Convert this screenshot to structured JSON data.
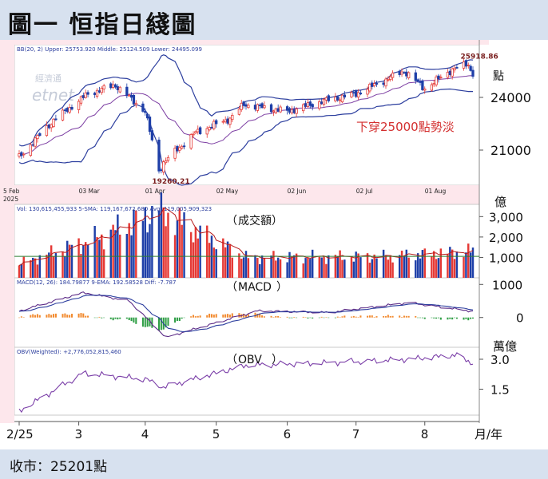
{
  "header": {
    "title": "圖一 恒指日綫圖"
  },
  "footer": {
    "close_label": "收市：25201點"
  },
  "watermark": {
    "line1": "經濟通",
    "line2": "etnet"
  },
  "colors": {
    "up": "#e53935",
    "down": "#1e3fa8",
    "bands": "#2c3e9e",
    "middle": "#7d3fa3",
    "annotation": "#d32f2f",
    "pink_panel": "#fde7ec",
    "macd_pos": "#f28a2e",
    "macd_neg": "#2e9e44",
    "vol_avg": "#2e7d32"
  },
  "chart_data": [
    {
      "type": "candlestick",
      "legend": "BB(20, 2)  Upper: 25753.920  Middle: 25124.509  Lower: 24495.099",
      "ylim": [
        19000,
        27000
      ],
      "y_ticks": [
        21000,
        24000
      ],
      "y_unit": "點",
      "annotation": "下穿25000點勢淡",
      "high_label": "25918.86",
      "low_label": "19260.21",
      "x_axis_top_labels": [
        "5 Feb 2025",
        "03 Mar",
        "01 Apr",
        "02 May",
        "02 Jun",
        "02 Jul",
        "01 Aug"
      ],
      "key_points": [
        {
          "date": "2025-02-05",
          "close": 20600
        },
        {
          "date": "2025-02-20",
          "close": 22700
        },
        {
          "date": "2025-03-07",
          "close": 24200
        },
        {
          "date": "2025-03-19",
          "close": 24700
        },
        {
          "date": "2025-04-01",
          "close": 23200
        },
        {
          "date": "2025-04-07",
          "close": 19800
        },
        {
          "date": "2025-04-09",
          "close": 20300
        },
        {
          "date": "2025-04-23",
          "close": 22000
        },
        {
          "date": "2025-05-08",
          "close": 22800
        },
        {
          "date": "2025-05-14",
          "close": 23600
        },
        {
          "date": "2025-06-02",
          "close": 23200
        },
        {
          "date": "2025-06-18",
          "close": 23800
        },
        {
          "date": "2025-07-02",
          "close": 24200
        },
        {
          "date": "2025-07-23",
          "close": 25500
        },
        {
          "date": "2025-08-01",
          "close": 24500
        },
        {
          "date": "2025-08-13",
          "close": 25600
        },
        {
          "date": "2025-08-20",
          "close": 25900
        },
        {
          "date": "2025-08-22",
          "close": 25201
        }
      ]
    },
    {
      "type": "bar",
      "title": "成交額",
      "legend": "Vol: 130,615,455,933  5-SMA: 119,167,672,680  Avg: 119,005,909,323",
      "y_ticks": [
        "3,000",
        "2,000",
        "1,000"
      ],
      "y_unit": "億",
      "ylim": [
        0,
        3600
      ],
      "key_points": [
        {
          "date": "2025-02-05",
          "value": 700
        },
        {
          "date": "2025-03-10",
          "value": 1900
        },
        {
          "date": "2025-04-07",
          "value": 3300
        },
        {
          "date": "2025-05-15",
          "value": 1000
        },
        {
          "date": "2025-07-15",
          "value": 1050
        },
        {
          "date": "2025-08-22",
          "value": 1300
        }
      ]
    },
    {
      "type": "line",
      "title": "MACD",
      "legend": "MACD(12, 26): 184.79877  9-EMA: 192.58528  Diff: -7.787",
      "y_ticks": [
        "1000",
        "0"
      ],
      "ylim": [
        -900,
        1200
      ],
      "key_points": [
        {
          "date": "2025-02-05",
          "macd": 200
        },
        {
          "date": "2025-03-05",
          "macd": 750
        },
        {
          "date": "2025-03-25",
          "macd": 500
        },
        {
          "date": "2025-04-10",
          "macd": -600
        },
        {
          "date": "2025-05-20",
          "macd": 200
        },
        {
          "date": "2025-06-20",
          "macd": 150
        },
        {
          "date": "2025-07-25",
          "macd": 450
        },
        {
          "date": "2025-08-22",
          "macd": 185
        }
      ]
    },
    {
      "type": "line",
      "title": "OBV",
      "legend": "OBV(Weighted): +2,776,052,815,460",
      "y_ticks": [
        "3.0",
        "1.5"
      ],
      "y_unit": "萬億",
      "ylim": [
        0.2,
        3.6
      ],
      "key_points": [
        {
          "date": "2025-02-05",
          "value": 0.4
        },
        {
          "date": "2025-03-05",
          "value": 2.3
        },
        {
          "date": "2025-04-01",
          "value": 2.0
        },
        {
          "date": "2025-04-09",
          "value": 1.6
        },
        {
          "date": "2025-05-15",
          "value": 2.7
        },
        {
          "date": "2025-06-15",
          "value": 2.8
        },
        {
          "date": "2025-07-25",
          "value": 3.0
        },
        {
          "date": "2025-08-15",
          "value": 3.2
        },
        {
          "date": "2025-08-22",
          "value": 2.8
        }
      ]
    }
  ],
  "x_axis": {
    "labels": [
      {
        "text": "2/25",
        "date": "2025-02-05"
      },
      {
        "text": "3",
        "date": "2025-03-03"
      },
      {
        "text": "4",
        "date": "2025-04-01"
      },
      {
        "text": "5",
        "date": "2025-05-02"
      },
      {
        "text": "6",
        "date": "2025-06-02"
      },
      {
        "text": "7",
        "date": "2025-07-02"
      },
      {
        "text": "8",
        "date": "2025-08-01"
      }
    ],
    "unit": "月/年",
    "start": "2025-02-05",
    "end": "2025-08-22"
  }
}
